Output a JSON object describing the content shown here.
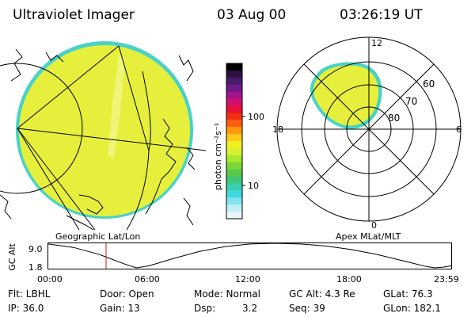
{
  "header": {
    "title": "Ultraviolet Imager",
    "date": "03 Aug 00",
    "time": "03:26:19 UT"
  },
  "colorbar": {
    "label": "photon cm⁻²s⁻¹",
    "ticks": [
      "100",
      "10"
    ],
    "colors": [
      "#000000",
      "#2b1040",
      "#4a1a6a",
      "#6e1a8a",
      "#a0148c",
      "#d0106a",
      "#e8103a",
      "#f03010",
      "#f86010",
      "#ff9a10",
      "#ffc818",
      "#f0f020",
      "#d8f030",
      "#a8e830",
      "#7ed63a",
      "#5ac848",
      "#40c878",
      "#38d0b0",
      "#40d8e0",
      "#80e4ee",
      "#c0eef4",
      "#e8f6f8"
    ]
  },
  "geo_panel": {
    "label": "Geographic Lat/Lon"
  },
  "polar_panel": {
    "label": "Apex MLat/MLT",
    "mlt_labels": [
      "12",
      "18",
      "6",
      "0"
    ],
    "mlat_labels": [
      "60",
      "70",
      "80"
    ]
  },
  "altitude_plot": {
    "ylabel": "GC Alt",
    "ytick_labels": [
      "9.0",
      "1.8"
    ],
    "time_labels": [
      "00:00",
      "06:00",
      "12:00",
      "18:00",
      "23:59"
    ],
    "marker_color": "#e01010"
  },
  "chart_data": {
    "type": "line",
    "title": "",
    "xlabel": "",
    "ylabel": "GC Alt",
    "x": [
      "00:00",
      "01:30",
      "03:00",
      "04:30",
      "05:15",
      "06:00",
      "07:30",
      "09:00",
      "10:30",
      "12:00",
      "13:30",
      "15:00",
      "16:30",
      "18:00",
      "19:30",
      "21:00",
      "22:30",
      "23:00",
      "23:30",
      "23:59"
    ],
    "series": [
      {
        "values": [
          8.8,
          7.8,
          5.8,
          3.0,
          1.8,
          2.4,
          4.6,
          6.6,
          8.0,
          8.8,
          9.0,
          8.8,
          8.2,
          7.2,
          5.8,
          4.0,
          2.2,
          1.8,
          2.0,
          2.4
        ]
      }
    ],
    "ylim": [
      1.8,
      9.0
    ],
    "marker_time": "03:26:19"
  },
  "info": {
    "row1": {
      "flt": "Flt: LBHL",
      "door": "Door: Open",
      "mode": "Mode: Normal",
      "gc_alt": "GC Alt: 4.3 Re",
      "glat": "GLat: 76.3"
    },
    "row2": {
      "ip": "IP: 36.0",
      "gain": "Gain: 13",
      "dsp_label": "Dsp:",
      "dsp_value": "3.2",
      "seq": "Seq: 39",
      "glon": "GLon: 182.1"
    }
  },
  "colors": {
    "aurora": "#e6f03c",
    "aurora_edge": "#48d2c8",
    "ink": "#000000"
  }
}
